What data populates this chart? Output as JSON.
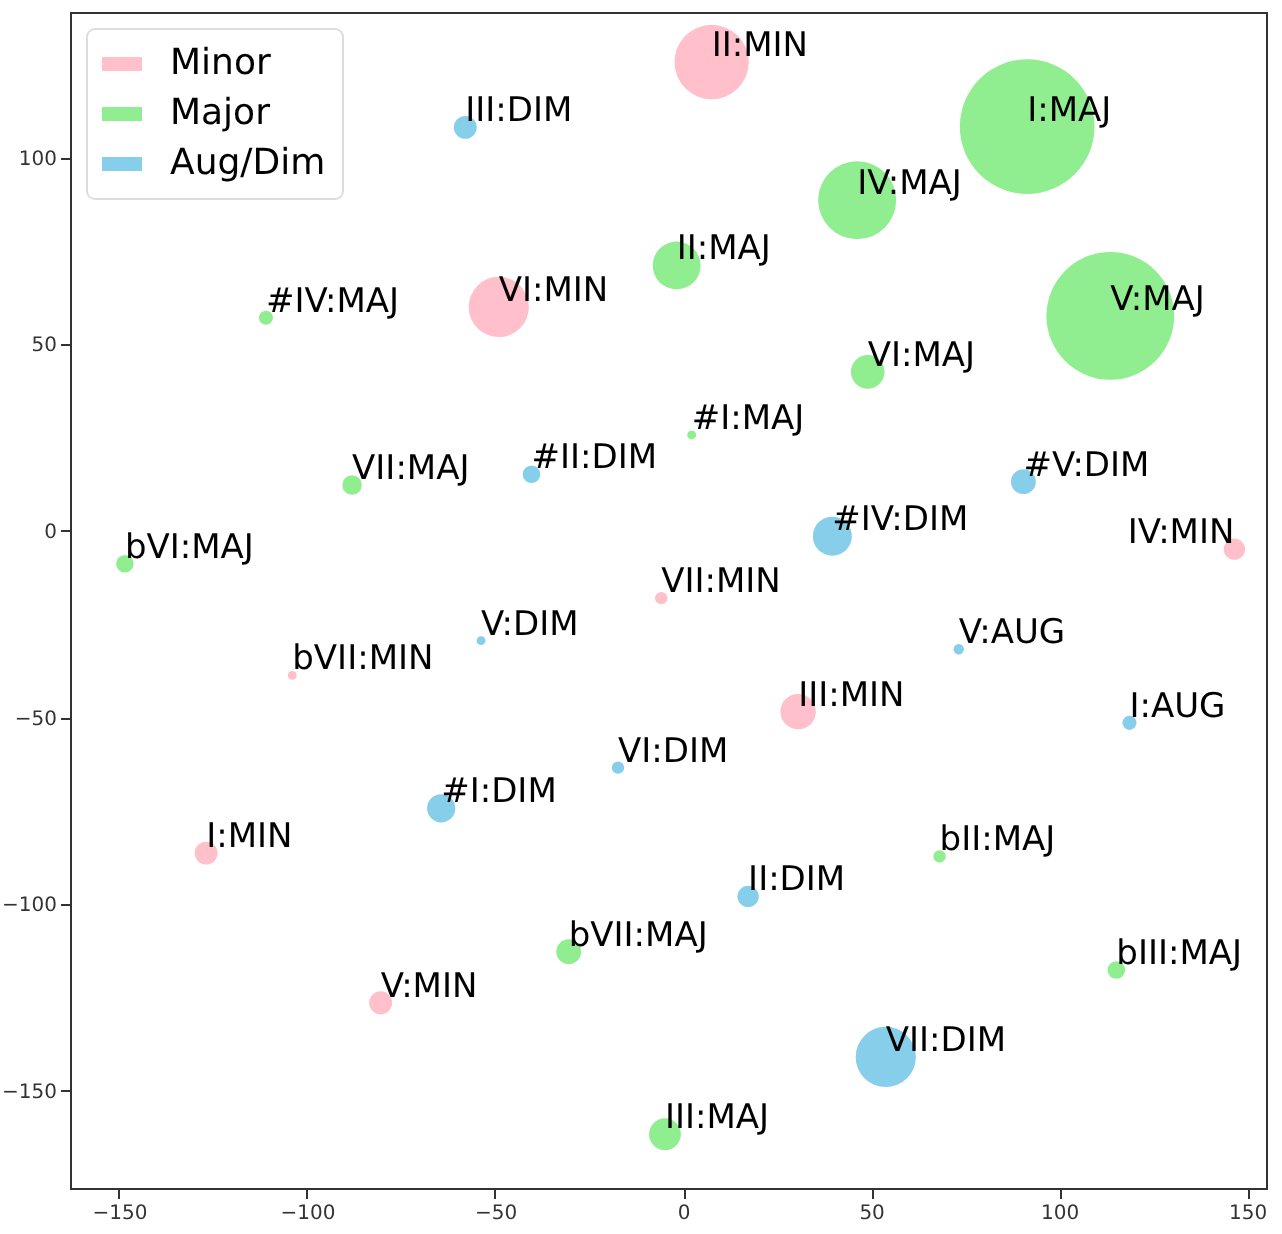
{
  "chart_data": {
    "type": "bubble",
    "xlim": [
      -163,
      155
    ],
    "ylim": [
      -176,
      139
    ],
    "xticks": [
      -150,
      -100,
      -50,
      0,
      50,
      100,
      150
    ],
    "yticks": [
      -150,
      -100,
      -50,
      0,
      50,
      100
    ],
    "grid": false,
    "legend": "top left",
    "series": [
      {
        "name": "Minor",
        "color": "#ffc0cb",
        "x": [
          7.6,
          -49,
          146.6,
          -5.8,
          -103.9,
          30.6,
          -126.8,
          -80.4
        ],
        "values": [
          125.6,
          60,
          -4.9,
          -18,
          -38.7,
          -48.4,
          -86.3,
          -126.4
        ],
        "sizes": [
          0.305,
          0.2,
          0.025,
          0.0085,
          0.0043,
          0.069,
          0.029,
          0.029
        ]
      },
      {
        "name": "Major",
        "color": "#90ee90",
        "x": [
          91.5,
          46.3,
          -1.7,
          113.6,
          49.1,
          2.3,
          -110.9,
          -88,
          -148.4,
          -30.4,
          -4.8,
          68.2,
          115.2
        ],
        "values": [
          108.3,
          88.6,
          71.1,
          57.6,
          42.6,
          25.7,
          57.1,
          12.3,
          -8.8,
          -112.7,
          -161.6,
          -87.2,
          -117.6
        ],
        "sizes": [
          1,
          0.335,
          0.126,
          0.9,
          0.0625,
          0.0043,
          0.011,
          0.021,
          0.017,
          0.034,
          0.056,
          0.0085,
          0.017
        ]
      },
      {
        "name": "Aug/Dim",
        "color": "#87ceeb",
        "x": [
          -57.9,
          -40.3,
          39.7,
          90.5,
          -53.7,
          -17.3,
          -64.3,
          73.3,
          118.7,
          17.3,
          53.9
        ],
        "values": [
          108.1,
          15.2,
          -1.4,
          13.2,
          -29.4,
          -63.4,
          -74.3,
          -31.7,
          -51.4,
          -97.9,
          -140.9
        ],
        "sizes": [
          0.029,
          0.017,
          0.084,
          0.034,
          0.0043,
          0.0085,
          0.044,
          0.006,
          0.011,
          0.025,
          0.2
        ]
      }
    ],
    "annotations": [
      {
        "text": "II:MIN",
        "x": 7.6,
        "y": 125.6
      },
      {
        "text": "VI:MIN",
        "x": -49,
        "y": 60
      },
      {
        "text": "IV:MIN",
        "x": 146.6,
        "y": -4.9
      },
      {
        "text": "VII:MIN",
        "x": -5.8,
        "y": -18
      },
      {
        "text": "bVII:MIN",
        "x": -103.9,
        "y": -38.7
      },
      {
        "text": "III:MIN",
        "x": 30.6,
        "y": -48.4
      },
      {
        "text": "I:MIN",
        "x": -126.8,
        "y": -86.3
      },
      {
        "text": "V:MIN",
        "x": -80.4,
        "y": -126.4
      },
      {
        "text": "I:MAJ",
        "x": 91.5,
        "y": 108.3
      },
      {
        "text": "IV:MAJ",
        "x": 46.3,
        "y": 88.6
      },
      {
        "text": "II:MAJ",
        "x": -1.7,
        "y": 71.1
      },
      {
        "text": "V:MAJ",
        "x": 113.6,
        "y": 57.6
      },
      {
        "text": "VI:MAJ",
        "x": 49.1,
        "y": 42.6
      },
      {
        "text": "#I:MAJ",
        "x": 2.3,
        "y": 25.7
      },
      {
        "text": "#IV:MAJ",
        "x": -110.9,
        "y": 57.1
      },
      {
        "text": "VII:MAJ",
        "x": -88,
        "y": 12.3
      },
      {
        "text": "bVI:MAJ",
        "x": -148.4,
        "y": -8.8
      },
      {
        "text": "bVII:MAJ",
        "x": -30.4,
        "y": -112.7
      },
      {
        "text": "III:MAJ",
        "x": -4.8,
        "y": -161.6
      },
      {
        "text": "bII:MAJ",
        "x": 68.2,
        "y": -87.2
      },
      {
        "text": "bIII:MAJ",
        "x": 115.2,
        "y": -117.6
      },
      {
        "text": "III:DIM",
        "x": -57.9,
        "y": 108.1
      },
      {
        "text": "#II:DIM",
        "x": -40.3,
        "y": 15.2
      },
      {
        "text": "#IV:DIM",
        "x": 39.7,
        "y": -1.4
      },
      {
        "text": "#V:DIM",
        "x": 90.5,
        "y": 13.2
      },
      {
        "text": "V:DIM",
        "x": -53.7,
        "y": -29.4
      },
      {
        "text": "VI:DIM",
        "x": -17.3,
        "y": -63.4
      },
      {
        "text": "#I:DIM",
        "x": -64.3,
        "y": -74.3
      },
      {
        "text": "V:AUG",
        "x": 73.3,
        "y": -31.7
      },
      {
        "text": "I:AUG",
        "x": 118.7,
        "y": -51.4
      },
      {
        "text": "II:DIM",
        "x": 17.3,
        "y": -97.9
      },
      {
        "text": "VII:DIM",
        "x": 53.9,
        "y": -140.9
      }
    ]
  }
}
